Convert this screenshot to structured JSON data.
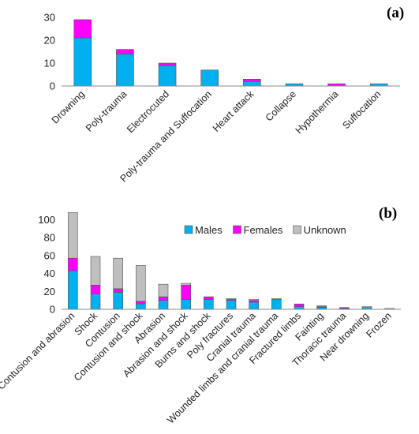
{
  "chart_data": [
    {
      "type": "bar",
      "stacked": true,
      "panel_label": "(a)",
      "categories": [
        "Drowning",
        "Poly-trauma",
        "Electrocuted",
        "Poly-trauma and Suffocation",
        "Heart attack",
        "Collapse",
        "Hypothermia",
        "Suffocation"
      ],
      "series": [
        {
          "values": [
            21,
            14,
            9,
            7,
            2,
            1,
            0,
            1
          ],
          "color": "#00B0F0"
        },
        {
          "values": [
            8,
            2,
            1,
            0,
            1,
            0,
            1,
            0
          ],
          "color": "#FF00FF"
        }
      ],
      "yticks": [
        0,
        10,
        20,
        30
      ],
      "ylim": [
        0,
        30
      ],
      "grid": false,
      "legend": false
    },
    {
      "type": "bar",
      "stacked": true,
      "panel_label": "(b)",
      "categories": [
        "Contusion and abrasion",
        "Shock",
        "Contusion",
        "Contusion and shock",
        "Abrasion",
        "Abrasion and shock",
        "Burns and shock",
        "Poly fractures",
        "Cranial trauma",
        "Wounded limbs and cranial trauma",
        "Fractured limbs",
        "Fainting",
        "Thoracic trauma",
        "Near drowning",
        "Frozen"
      ],
      "series": [
        {
          "name": "Males",
          "values": [
            43,
            17,
            19,
            6,
            10,
            11,
            11,
            10,
            8,
            11,
            3,
            2,
            1,
            2,
            0
          ],
          "color": "#00B0F0"
        },
        {
          "name": "Females",
          "values": [
            14,
            10,
            4,
            3,
            4,
            16,
            3,
            1,
            2,
            0,
            3,
            1,
            1,
            0,
            0
          ],
          "color": "#FF00FF"
        },
        {
          "name": "Unknown",
          "values": [
            51,
            32,
            34,
            40,
            14,
            2,
            0,
            1,
            1,
            1,
            0,
            1,
            0,
            1,
            1
          ],
          "color": "#BFBFBF"
        }
      ],
      "yticks": [
        0,
        20,
        40,
        60,
        80,
        100
      ],
      "ylim": [
        0,
        110
      ],
      "grid": false,
      "legend": "top-center"
    }
  ]
}
